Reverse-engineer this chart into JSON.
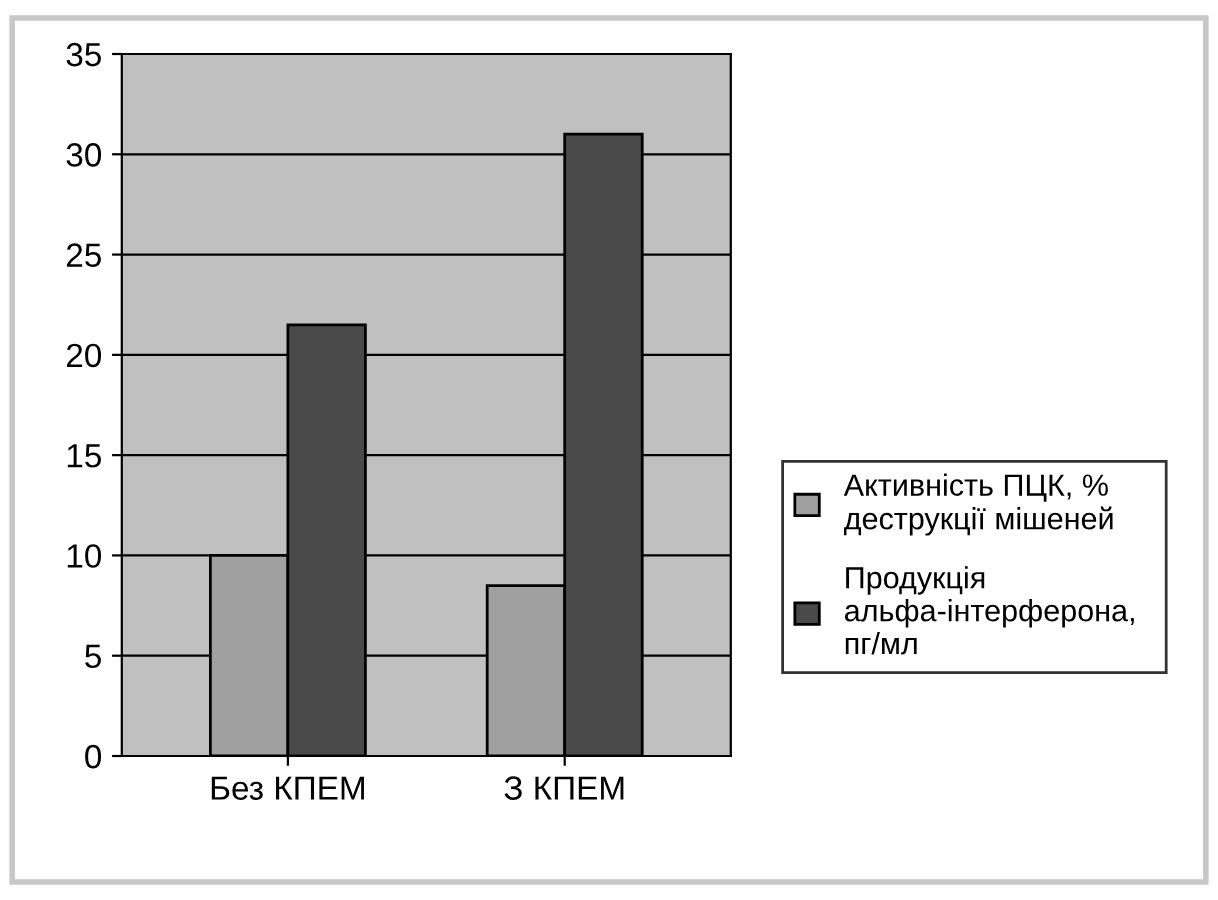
{
  "chart_data": {
    "type": "bar",
    "categories": [
      "Без КПЕМ",
      "З КПЕМ"
    ],
    "series": [
      {
        "name": "Активність ПЦК, % деструкції мішеней",
        "color": "#a0a0a0",
        "values": [
          10,
          8.5
        ]
      },
      {
        "name": "Продукція альфа-інтерферона, пг/мл",
        "color": "#4a4a4a",
        "values": [
          21.5,
          31
        ]
      }
    ],
    "ylim": [
      0,
      35
    ],
    "yticks": [
      0,
      5,
      10,
      15,
      20,
      25,
      30,
      35
    ],
    "grid": "y",
    "legend": "right"
  }
}
